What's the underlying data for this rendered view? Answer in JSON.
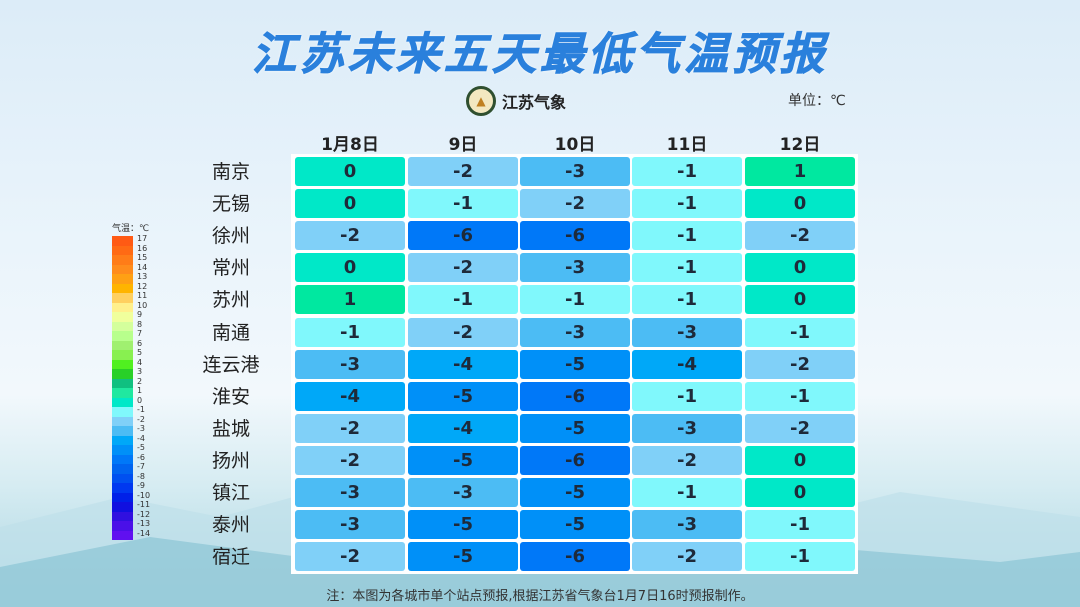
{
  "title": "江苏未来五天最低气温预报",
  "logo_text": "江苏气象",
  "unit": "单位：℃",
  "columns": [
    "1月8日",
    "9日",
    "10日",
    "11日",
    "12日"
  ],
  "rows": [
    {
      "city": "南京",
      "values": [
        0,
        -2,
        -3,
        -1,
        1
      ]
    },
    {
      "city": "无锡",
      "values": [
        0,
        -1,
        -2,
        -1,
        0
      ]
    },
    {
      "city": "徐州",
      "values": [
        -2,
        -6,
        -6,
        -1,
        -2
      ]
    },
    {
      "city": "常州",
      "values": [
        0,
        -2,
        -3,
        -1,
        0
      ]
    },
    {
      "city": "苏州",
      "values": [
        1,
        -1,
        -1,
        -1,
        0
      ]
    },
    {
      "city": "南通",
      "values": [
        -1,
        -2,
        -3,
        -3,
        -1
      ]
    },
    {
      "city": "连云港",
      "values": [
        -3,
        -4,
        -5,
        -4,
        -2
      ]
    },
    {
      "city": "淮安",
      "values": [
        -4,
        -5,
        -6,
        -1,
        -1
      ]
    },
    {
      "city": "盐城",
      "values": [
        -2,
        -4,
        -5,
        -3,
        -2
      ]
    },
    {
      "city": "扬州",
      "values": [
        -2,
        -5,
        -6,
        -2,
        0
      ]
    },
    {
      "city": "镇江",
      "values": [
        -3,
        -3,
        -5,
        -1,
        0
      ]
    },
    {
      "city": "泰州",
      "values": [
        -3,
        -5,
        -5,
        -3,
        -1
      ]
    },
    {
      "city": "宿迁",
      "values": [
        -2,
        -5,
        -6,
        -2,
        -1
      ]
    }
  ],
  "legend": {
    "title": "气温：℃",
    "levels": [
      17,
      16,
      15,
      14,
      13,
      12,
      11,
      10,
      9,
      8,
      7,
      6,
      5,
      4,
      3,
      2,
      1,
      0,
      -1,
      -2,
      -3,
      -4,
      -5,
      -6,
      -7,
      -8,
      -9,
      -10,
      -11,
      -12,
      -13,
      -14
    ],
    "colors": [
      "#ff5a14",
      "#ff6a14",
      "#ff7c18",
      "#ff8c1c",
      "#ffa014",
      "#ffb400",
      "#ffd060",
      "#fff08c",
      "#f0ff9c",
      "#d4ff9c",
      "#b8ff8c",
      "#a0f070",
      "#88f050",
      "#50f020",
      "#28d028",
      "#10c080",
      "#20e8a0",
      "#00e8c8",
      "#80f8fc",
      "#80d0f8",
      "#4cbcf4",
      "#00a8f8",
      "#0090f8",
      "#0078f8",
      "#0064f0",
      "#0050f0",
      "#0038f0",
      "#0020e8",
      "#1010e0",
      "#3010e0",
      "#4a10e8",
      "#6010f0"
    ]
  },
  "cell_colors": {
    "1": "#00e8a0",
    "0": "#00e8c8",
    "-1": "#80f8fc",
    "-2": "#80d0f8",
    "-3": "#4cbcf4",
    "-4": "#00a8f8",
    "-5": "#0090f8",
    "-6": "#0078f8"
  },
  "note": "注：本图为各城市单个站点预报,根据江苏省气象台1月7日16时预报制作。"
}
